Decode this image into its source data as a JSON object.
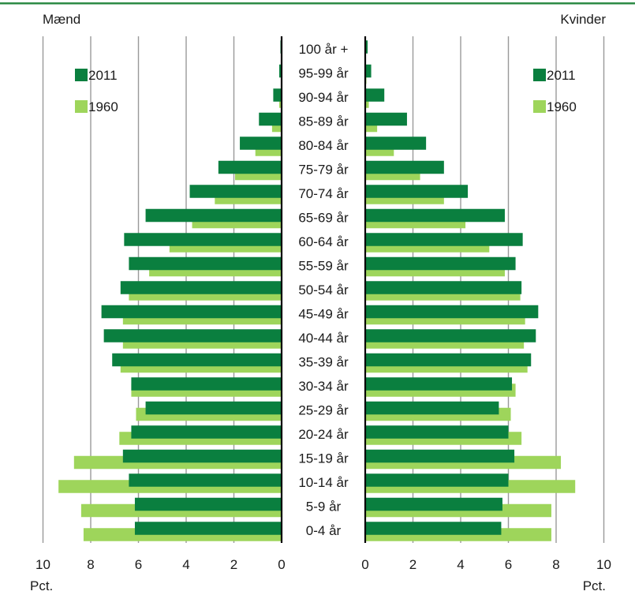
{
  "chart_data": {
    "type": "bar",
    "subtype": "population-pyramid",
    "left_label": "Mænd",
    "right_label": "Kvinder",
    "unit_label": "Pct.",
    "xlim": [
      0,
      10
    ],
    "x_ticks": [
      "10",
      "8",
      "6",
      "4",
      "2",
      "0"
    ],
    "x_ticks_right": [
      "0",
      "2",
      "4",
      "6",
      "8",
      "10"
    ],
    "grid": true,
    "legend_placement": "top-left and top-right",
    "categories": [
      "100 år +",
      "95-99 år",
      "90-94 år",
      "85-89 år",
      "80-84 år",
      "75-79 år",
      "70-74 år",
      "65-69 år",
      "60-64 år",
      "55-59 år",
      "50-54 år",
      "45-49 år",
      "40-44 år",
      "35-39 år",
      "30-34 år",
      "25-29 år",
      "20-24 år",
      "15-19 år",
      "10-14 år",
      "5-9 år",
      "0-4 år"
    ],
    "series": [
      {
        "name": "2011",
        "color": "#0a7f3f",
        "men": [
          0.05,
          0.1,
          0.35,
          0.95,
          1.75,
          2.65,
          3.85,
          5.7,
          6.6,
          6.4,
          6.75,
          7.55,
          7.45,
          7.1,
          6.3,
          5.7,
          6.3,
          6.65,
          6.4,
          6.15,
          6.15
        ],
        "women": [
          0.1,
          0.25,
          0.8,
          1.75,
          2.55,
          3.3,
          4.3,
          5.85,
          6.6,
          6.3,
          6.55,
          7.25,
          7.15,
          6.95,
          6.15,
          5.6,
          6.0,
          6.25,
          6.0,
          5.75,
          5.7
        ]
      },
      {
        "name": "1960",
        "color": "#9ed55b",
        "men": [
          0.01,
          0.02,
          0.1,
          0.4,
          1.1,
          1.95,
          2.8,
          3.75,
          4.7,
          5.55,
          6.4,
          6.65,
          6.65,
          6.75,
          6.3,
          6.1,
          6.8,
          8.7,
          9.35,
          8.4,
          8.3
        ],
        "women": [
          0.02,
          0.05,
          0.15,
          0.5,
          1.2,
          2.3,
          3.3,
          4.2,
          5.2,
          5.85,
          6.5,
          6.7,
          6.65,
          6.8,
          6.3,
          6.1,
          6.55,
          8.2,
          8.8,
          7.8,
          7.8
        ]
      }
    ]
  }
}
